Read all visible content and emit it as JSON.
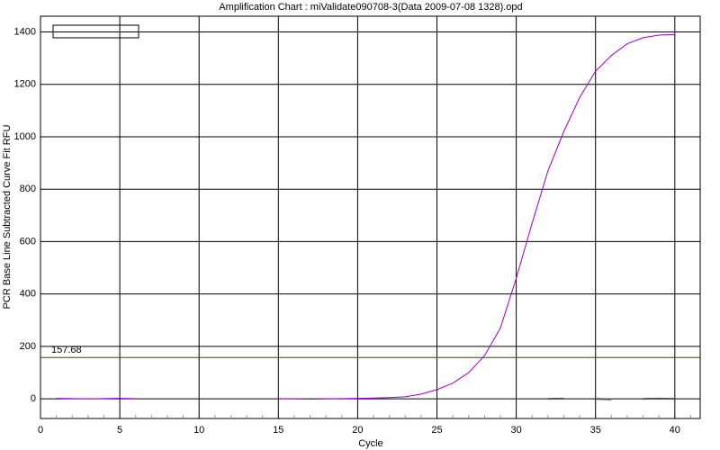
{
  "chart_data": {
    "type": "line",
    "title": "Amplification Chart : miValidate090708-3(Data 2009-07-08 1328).opd",
    "x_label": "Cycle",
    "y_label": "PCR Base Line Subtracted Curve Fit RFU",
    "x": [
      1,
      2,
      3,
      4,
      5,
      6,
      7,
      8,
      9,
      10,
      11,
      12,
      13,
      14,
      15,
      16,
      17,
      18,
      19,
      20,
      21,
      22,
      23,
      24,
      25,
      26,
      27,
      28,
      29,
      30,
      31,
      32,
      33,
      34,
      35,
      36,
      37,
      38,
      39,
      40
    ],
    "series": [
      {
        "color": "#9900cc",
        "values": [
          2,
          1,
          0,
          1,
          2,
          1,
          null,
          null,
          null,
          null,
          null,
          null,
          null,
          null,
          1,
          0,
          -1,
          0,
          1,
          2,
          3,
          5,
          8,
          18,
          35,
          60,
          100,
          165,
          270,
          460,
          670,
          870,
          1020,
          1150,
          1250,
          1310,
          1355,
          1378,
          1388,
          1390
        ]
      },
      {
        "color": "#555555",
        "values": [
          null,
          null,
          null,
          null,
          null,
          2,
          null,
          -3,
          null,
          null,
          1,
          null,
          null,
          null,
          null,
          null,
          null,
          -2,
          null,
          null,
          null,
          null,
          -3,
          null,
          null,
          null,
          -1,
          null,
          null,
          null,
          null,
          0,
          1,
          null,
          0,
          -2,
          null,
          0,
          1,
          0
        ]
      }
    ],
    "threshold": 157.68,
    "threshold_label": "157.68",
    "threshold_color": "#006600",
    "xlim": [
      0,
      41.6
    ],
    "ylim": [
      -75,
      1460
    ],
    "xticks": [
      0,
      5,
      10,
      15,
      20,
      25,
      30,
      35,
      40
    ],
    "yticks": [
      0,
      200,
      400,
      600,
      800,
      1000,
      1200,
      1400
    ],
    "grid": true
  }
}
